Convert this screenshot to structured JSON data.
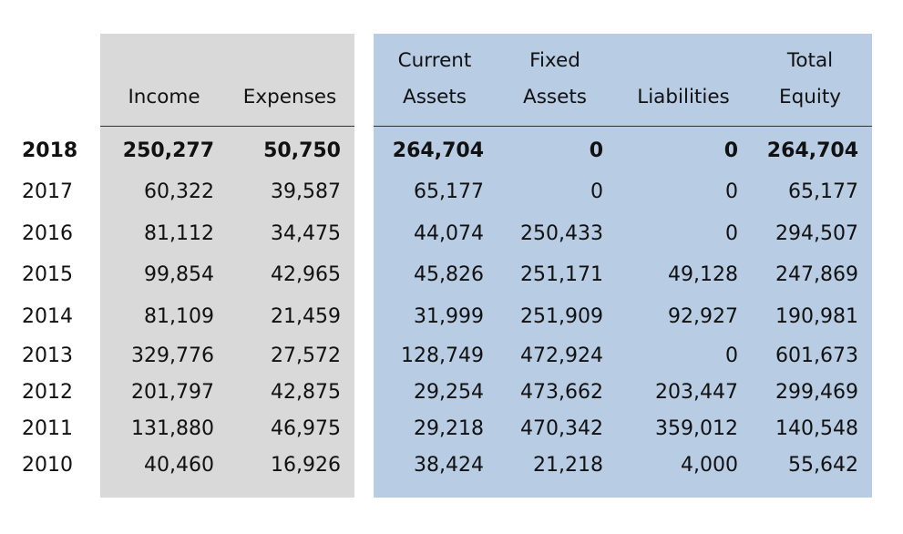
{
  "headers": {
    "income": [
      "",
      "Income"
    ],
    "expenses": [
      "",
      "Expenses"
    ],
    "current_assets": [
      "Current",
      "Assets"
    ],
    "fixed_assets": [
      "Fixed",
      "Assets"
    ],
    "liabilities": [
      "",
      "Liabilities"
    ],
    "total_equity": [
      "Total",
      "Equity"
    ]
  },
  "rows": [
    {
      "year": "2018",
      "income": "250,277",
      "expenses": "50,750",
      "current_assets": "264,704",
      "fixed_assets": "0",
      "liabilities": "0",
      "total_equity": "264,704",
      "bold": true
    },
    {
      "year": "2017",
      "income": "60,322",
      "expenses": "39,587",
      "current_assets": "65,177",
      "fixed_assets": "0",
      "liabilities": "0",
      "total_equity": "65,177"
    },
    {
      "year": "2016",
      "income": "81,112",
      "expenses": "34,475",
      "current_assets": "44,074",
      "fixed_assets": "250,433",
      "liabilities": "0",
      "total_equity": "294,507"
    },
    {
      "year": "2015",
      "income": "99,854",
      "expenses": "42,965",
      "current_assets": "45,826",
      "fixed_assets": "251,171",
      "liabilities": "49,128",
      "total_equity": "247,869"
    },
    {
      "year": "2014",
      "income": "81,109",
      "expenses": "21,459",
      "current_assets": "31,999",
      "fixed_assets": "251,909",
      "liabilities": "92,927",
      "total_equity": "190,981"
    },
    {
      "year": "2013",
      "income": "329,776",
      "expenses": "27,572",
      "current_assets": "128,749",
      "fixed_assets": "472,924",
      "liabilities": "0",
      "total_equity": "601,673"
    },
    {
      "year": "2012",
      "income": "201,797",
      "expenses": "42,875",
      "current_assets": "29,254",
      "fixed_assets": "473,662",
      "liabilities": "203,447",
      "total_equity": "299,469"
    },
    {
      "year": "2011",
      "income": "131,880",
      "expenses": "46,975",
      "current_assets": "29,218",
      "fixed_assets": "470,342",
      "liabilities": "359,012",
      "total_equity": "140,548"
    },
    {
      "year": "2010",
      "income": "40,460",
      "expenses": "16,926",
      "current_assets": "38,424",
      "fixed_assets": "21,218",
      "liabilities": "4,000",
      "total_equity": "55,642"
    }
  ],
  "colors": {
    "left_panel": "#d9d9d9",
    "right_panel": "#b8cce4",
    "rule": "#333333",
    "text": "#111111"
  }
}
